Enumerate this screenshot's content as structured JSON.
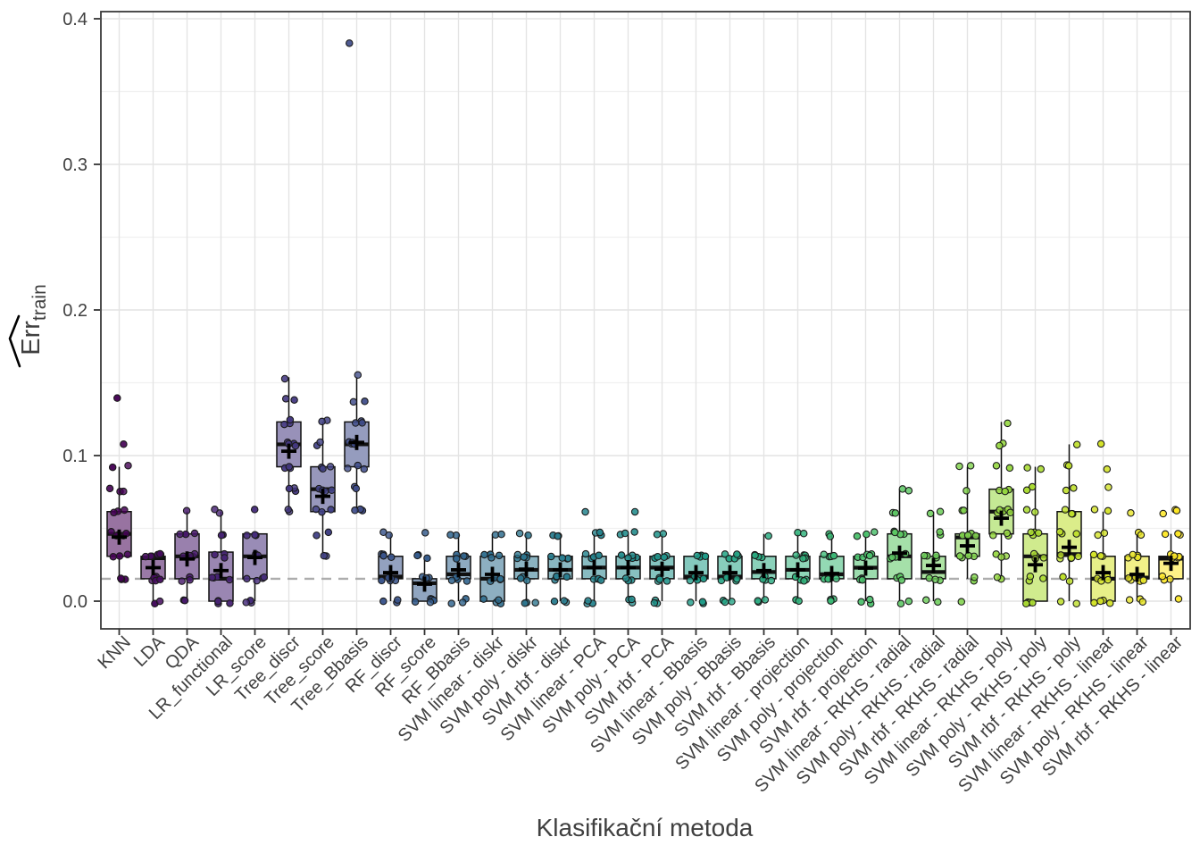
{
  "chart_data": {
    "type": "boxplot-jitter",
    "xlabel": "Klasifikační metoda",
    "ylabel_main": "Err",
    "ylabel_sub": "train",
    "ylabel_hat": true,
    "ylim": [
      -0.018,
      0.405
    ],
    "y_ticks": [
      0.0,
      0.1,
      0.2,
      0.3,
      0.4
    ],
    "y_minor_ticks": [
      0.05,
      0.15,
      0.25,
      0.35
    ],
    "grid": true,
    "legend": "none",
    "dashed_reference_y": 0.0154,
    "palette": "viridis",
    "fill_alpha": 0.55,
    "categories": [
      "KNN",
      "LDA",
      "QDA",
      "LR_functional",
      "LR_score",
      "Tree_discr",
      "Tree_score",
      "Tree_Bbasis",
      "RF_discr",
      "RF_score",
      "RF_Bbasis",
      "SVM linear - diskr",
      "SVM poly - diskr",
      "SVM rbf - diskr",
      "SVM linear - PCA",
      "SVM poly - PCA",
      "SVM rbf - PCA",
      "SVM linear - Bbasis",
      "SVM poly - Bbasis",
      "SVM rbf - Bbasis",
      "SVM linear - projection",
      "SVM poly - projection",
      "SVM rbf - projection",
      "SVM linear - RKHS - radial",
      "SVM poly - RKHS - radial",
      "SVM rbf - RKHS - radial",
      "SVM linear - RKHS - poly",
      "SVM poly - RKHS - poly",
      "SVM rbf - RKHS - poly",
      "SVM linear - RKHS - linear",
      "SVM poly - RKHS - linear",
      "SVM rbf - RKHS - linear"
    ],
    "series": [
      {
        "label": "KNN",
        "stats": [
          0.0154,
          0.0308,
          0.0462,
          0.0615,
          0.0923
        ],
        "mean": 0.044,
        "points": [
          [
            0.0154,
            3
          ],
          [
            0.0308,
            3
          ],
          [
            0.0462,
            5
          ],
          [
            0.0615,
            3
          ],
          [
            0.0769,
            3
          ],
          [
            0.0923,
            2
          ],
          [
            0.1077,
            1
          ],
          [
            0.1385,
            1
          ]
        ]
      },
      {
        "label": "LDA",
        "stats": [
          0,
          0.0154,
          0.0295,
          0.0308,
          0.0308
        ],
        "mean": 0.023,
        "points": [
          [
            0,
            2
          ],
          [
            0.0154,
            5
          ],
          [
            0.0308,
            6
          ]
        ]
      },
      {
        "label": "QDA",
        "stats": [
          0,
          0.0154,
          0.0308,
          0.0462,
          0.0615
        ],
        "mean": 0.029,
        "points": [
          [
            0,
            2
          ],
          [
            0.0154,
            3
          ],
          [
            0.0308,
            4
          ],
          [
            0.0462,
            3
          ],
          [
            0.0615,
            1
          ]
        ]
      },
      {
        "label": "LR_functional",
        "stats": [
          0,
          0,
          0.0154,
          0.0337,
          0.0615
        ],
        "mean": 0.021,
        "points": [
          [
            0,
            4
          ],
          [
            0.0154,
            4
          ],
          [
            0.0308,
            3
          ],
          [
            0.0462,
            2
          ],
          [
            0.0615,
            2
          ]
        ]
      },
      {
        "label": "LR_score",
        "stats": [
          0,
          0.0154,
          0.0308,
          0.0462,
          0.0462
        ],
        "mean": 0.03,
        "points": [
          [
            0,
            3
          ],
          [
            0.0154,
            4
          ],
          [
            0.0308,
            2
          ],
          [
            0.0462,
            3
          ],
          [
            0.0615,
            1
          ]
        ]
      },
      {
        "label": "Tree_discr",
        "stats": [
          0.0615,
          0.0923,
          0.1077,
          0.1231,
          0.1538
        ],
        "mean": 0.103,
        "points": [
          [
            0.0615,
            2
          ],
          [
            0.0769,
            3
          ],
          [
            0.0923,
            3
          ],
          [
            0.1077,
            4
          ],
          [
            0.1231,
            3
          ],
          [
            0.1385,
            2
          ],
          [
            0.1538,
            1
          ]
        ]
      },
      {
        "label": "Tree_score",
        "stats": [
          0.0308,
          0.0615,
          0.0769,
          0.0923,
          0.1231
        ],
        "mean": 0.072,
        "points": [
          [
            0.0308,
            2
          ],
          [
            0.0462,
            2
          ],
          [
            0.0615,
            3
          ],
          [
            0.0769,
            4
          ],
          [
            0.0923,
            3
          ],
          [
            0.1077,
            2
          ],
          [
            0.1231,
            2
          ]
        ]
      },
      {
        "label": "Tree_Bbasis",
        "stats": [
          0.0615,
          0.0923,
          0.1077,
          0.1231,
          0.1538
        ],
        "mean": 0.109,
        "points": [
          [
            0.0615,
            3
          ],
          [
            0.0769,
            2
          ],
          [
            0.0923,
            3
          ],
          [
            0.1077,
            4
          ],
          [
            0.1231,
            3
          ],
          [
            0.1385,
            2
          ],
          [
            0.1538,
            1
          ],
          [
            0.3846,
            1
          ]
        ]
      },
      {
        "label": "RF_discr",
        "stats": [
          0,
          0.0154,
          0.0169,
          0.0308,
          0.0462
        ],
        "mean": 0.0196,
        "points": [
          [
            0,
            3
          ],
          [
            0.0154,
            5
          ],
          [
            0.0308,
            4
          ],
          [
            0.0462,
            2
          ]
        ]
      },
      {
        "label": "RF_score",
        "stats": [
          0,
          0,
          0.0123,
          0.0154,
          0.0308
        ],
        "mean": 0.0117,
        "points": [
          [
            0,
            5
          ],
          [
            0.0154,
            4
          ],
          [
            0.0308,
            3
          ],
          [
            0.0462,
            1
          ]
        ]
      },
      {
        "label": "RF_Bbasis",
        "stats": [
          0,
          0.0154,
          0.0185,
          0.0308,
          0.0462
        ],
        "mean": 0.0215,
        "points": [
          [
            0,
            3
          ],
          [
            0.0154,
            4
          ],
          [
            0.0308,
            4
          ],
          [
            0.0462,
            2
          ]
        ]
      },
      {
        "label": "SVM linear - diskr",
        "stats": [
          0,
          0,
          0.0154,
          0.0308,
          0.0462
        ],
        "mean": 0.0184,
        "points": [
          [
            0,
            4
          ],
          [
            0.0154,
            4
          ],
          [
            0.0308,
            4
          ],
          [
            0.0462,
            2
          ]
        ]
      },
      {
        "label": "SVM poly - diskr",
        "stats": [
          0,
          0.0154,
          0.0215,
          0.0308,
          0.0462
        ],
        "mean": 0.022,
        "points": [
          [
            0,
            3
          ],
          [
            0.0154,
            3
          ],
          [
            0.0308,
            5
          ],
          [
            0.0462,
            2
          ]
        ]
      },
      {
        "label": "SVM rbf - diskr",
        "stats": [
          0,
          0.0154,
          0.0215,
          0.0308,
          0.0462
        ],
        "mean": 0.0215,
        "points": [
          [
            0,
            3
          ],
          [
            0.0154,
            4
          ],
          [
            0.0308,
            4
          ],
          [
            0.0462,
            3
          ]
        ]
      },
      {
        "label": "SVM linear - PCA",
        "stats": [
          0,
          0.0154,
          0.0231,
          0.0308,
          0.0462
        ],
        "mean": 0.023,
        "points": [
          [
            0,
            3
          ],
          [
            0.0154,
            4
          ],
          [
            0.0308,
            4
          ],
          [
            0.0462,
            3
          ],
          [
            0.0615,
            1
          ]
        ]
      },
      {
        "label": "SVM poly - PCA",
        "stats": [
          0,
          0.0154,
          0.0231,
          0.0308,
          0.0462
        ],
        "mean": 0.023,
        "points": [
          [
            0,
            3
          ],
          [
            0.0154,
            3
          ],
          [
            0.0308,
            5
          ],
          [
            0.0462,
            3
          ],
          [
            0.0615,
            1
          ]
        ]
      },
      {
        "label": "SVM rbf - PCA",
        "stats": [
          0,
          0.0154,
          0.0231,
          0.0308,
          0.0462
        ],
        "mean": 0.022,
        "points": [
          [
            0,
            3
          ],
          [
            0.0154,
            4
          ],
          [
            0.0308,
            4
          ],
          [
            0.0462,
            2
          ]
        ]
      },
      {
        "label": "SVM linear - Bbasis",
        "stats": [
          0,
          0.0154,
          0.0169,
          0.0308,
          0.0308
        ],
        "mean": 0.0196,
        "points": [
          [
            0,
            3
          ],
          [
            0.0154,
            5
          ],
          [
            0.0308,
            4
          ]
        ]
      },
      {
        "label": "SVM poly - Bbasis",
        "stats": [
          0,
          0.0154,
          0.0169,
          0.0308,
          0.0308
        ],
        "mean": 0.0196,
        "points": [
          [
            0,
            3
          ],
          [
            0.0154,
            5
          ],
          [
            0.0308,
            5
          ]
        ]
      },
      {
        "label": "SVM rbf - Bbasis",
        "stats": [
          0,
          0.0154,
          0.02,
          0.0308,
          0.0462
        ],
        "mean": 0.021,
        "points": [
          [
            0,
            3
          ],
          [
            0.0154,
            4
          ],
          [
            0.0308,
            4
          ],
          [
            0.0462,
            1
          ]
        ]
      },
      {
        "label": "SVM linear - projection",
        "stats": [
          0,
          0.0154,
          0.0215,
          0.0308,
          0.0462
        ],
        "mean": 0.0215,
        "points": [
          [
            0,
            2
          ],
          [
            0.0154,
            4
          ],
          [
            0.0308,
            5
          ],
          [
            0.0462,
            2
          ]
        ]
      },
      {
        "label": "SVM poly - projection",
        "stats": [
          0,
          0.0154,
          0.0185,
          0.0308,
          0.0462
        ],
        "mean": 0.019,
        "points": [
          [
            0,
            3
          ],
          [
            0.0154,
            4
          ],
          [
            0.0308,
            4
          ],
          [
            0.0462,
            2
          ]
        ]
      },
      {
        "label": "SVM rbf - projection",
        "stats": [
          0,
          0.0154,
          0.023,
          0.0308,
          0.0462
        ],
        "mean": 0.0227,
        "points": [
          [
            0,
            3
          ],
          [
            0.0154,
            4
          ],
          [
            0.0308,
            5
          ],
          [
            0.0462,
            3
          ]
        ]
      },
      {
        "label": "SVM linear - RKHS - radial",
        "stats": [
          0,
          0.0154,
          0.0308,
          0.0462,
          0.0769
        ],
        "mean": 0.033,
        "points": [
          [
            0,
            2
          ],
          [
            0.0154,
            3
          ],
          [
            0.0308,
            4
          ],
          [
            0.0462,
            4
          ],
          [
            0.0615,
            2
          ],
          [
            0.0769,
            2
          ]
        ]
      },
      {
        "label": "SVM poly - RKHS - radial",
        "stats": [
          0,
          0.0154,
          0.02,
          0.0308,
          0.0615
        ],
        "mean": 0.0245,
        "points": [
          [
            0,
            2
          ],
          [
            0.0154,
            3
          ],
          [
            0.0308,
            4
          ],
          [
            0.0462,
            2
          ],
          [
            0.0615,
            2
          ]
        ]
      },
      {
        "label": "SVM rbf - RKHS - radial",
        "stats": [
          0.0154,
          0.0308,
          0.0438,
          0.0462,
          0.0923
        ],
        "mean": 0.038,
        "points": [
          [
            0,
            1
          ],
          [
            0.0154,
            2
          ],
          [
            0.0308,
            4
          ],
          [
            0.0462,
            4
          ],
          [
            0.0615,
            2
          ],
          [
            0.0769,
            1
          ],
          [
            0.0923,
            2
          ]
        ]
      },
      {
        "label": "SVM linear - RKHS - poly",
        "stats": [
          0.0154,
          0.0462,
          0.0615,
          0.0769,
          0.1231
        ],
        "mean": 0.057,
        "points": [
          [
            0.0154,
            2
          ],
          [
            0.0308,
            3
          ],
          [
            0.0462,
            3
          ],
          [
            0.0615,
            5
          ],
          [
            0.0769,
            3
          ],
          [
            0.0923,
            2
          ],
          [
            0.1077,
            2
          ],
          [
            0.1231,
            1
          ]
        ]
      },
      {
        "label": "SVM poly - RKHS - poly",
        "stats": [
          0,
          0,
          0.0308,
          0.0462,
          0.0923
        ],
        "mean": 0.025,
        "points": [
          [
            0,
            4
          ],
          [
            0.0154,
            3
          ],
          [
            0.0308,
            4
          ],
          [
            0.0462,
            4
          ],
          [
            0.0615,
            2
          ],
          [
            0.0769,
            2
          ],
          [
            0.0923,
            2
          ]
        ]
      },
      {
        "label": "SVM rbf - RKHS - poly",
        "stats": [
          0,
          0.0308,
          0.0323,
          0.0615,
          0.1077
        ],
        "mean": 0.037,
        "points": [
          [
            0,
            2
          ],
          [
            0.0154,
            2
          ],
          [
            0.0308,
            5
          ],
          [
            0.0462,
            3
          ],
          [
            0.0615,
            3
          ],
          [
            0.0769,
            2
          ],
          [
            0.0923,
            2
          ],
          [
            0.1077,
            1
          ]
        ]
      },
      {
        "label": "SVM linear - RKHS - linear",
        "stats": [
          0,
          0,
          0.0154,
          0.0308,
          0.0615
        ],
        "mean": 0.0196,
        "points": [
          [
            0,
            4
          ],
          [
            0.0154,
            4
          ],
          [
            0.0308,
            3
          ],
          [
            0.0462,
            2
          ],
          [
            0.0615,
            2
          ],
          [
            0.0769,
            1
          ],
          [
            0.0923,
            1
          ],
          [
            0.1077,
            1
          ]
        ]
      },
      {
        "label": "SVM poly - RKHS - linear",
        "stats": [
          0,
          0.0154,
          0.0162,
          0.0308,
          0.0462
        ],
        "mean": 0.0184,
        "points": [
          [
            0,
            3
          ],
          [
            0.0154,
            5
          ],
          [
            0.0308,
            4
          ],
          [
            0.0462,
            2
          ],
          [
            0.0615,
            1
          ]
        ]
      },
      {
        "label": "SVM rbf - RKHS - linear",
        "stats": [
          0,
          0.0154,
          0.0292,
          0.0308,
          0.0462
        ],
        "mean": 0.026,
        "points": [
          [
            0,
            1
          ],
          [
            0.0154,
            3
          ],
          [
            0.0308,
            5
          ],
          [
            0.0462,
            3
          ],
          [
            0.0615,
            3
          ]
        ]
      }
    ]
  },
  "colors": {
    "viridis_stops": [
      "#440154",
      "#482878",
      "#3e4a89",
      "#31688e",
      "#26828e",
      "#1f9e89",
      "#35b779",
      "#6ece58",
      "#b5de2b",
      "#fde725"
    ],
    "grid_major": "#e4e4e4",
    "grid_minor": "#f0f0f0",
    "panel_border": "#3a3a3a",
    "tick_color": "#333333",
    "axis_text": "#404040",
    "title_color": "#000000",
    "dashed_line": "#adadad",
    "box_stroke": "#111111",
    "background": "#ffffff"
  }
}
